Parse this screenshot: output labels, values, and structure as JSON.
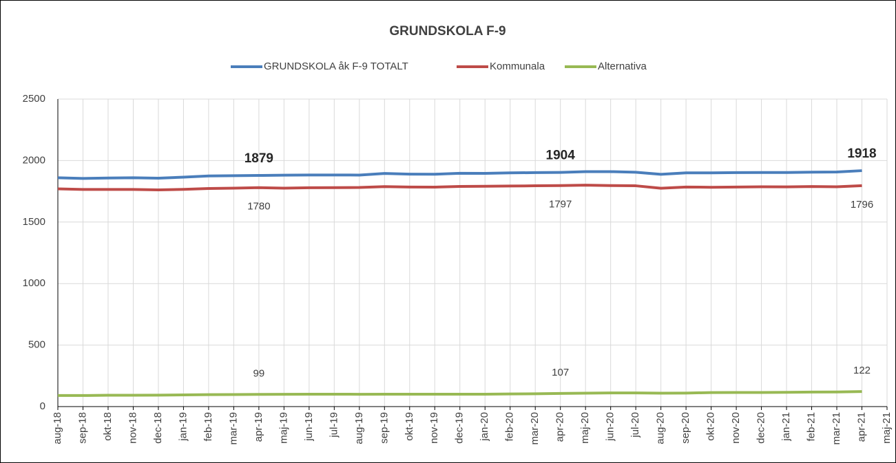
{
  "chart_data": {
    "type": "line",
    "title": "GRUNDSKOLA F-9",
    "categories": [
      "aug-18",
      "sep-18",
      "okt-18",
      "nov-18",
      "dec-18",
      "jan-19",
      "feb-19",
      "mar-19",
      "apr-19",
      "maj-19",
      "jun-19",
      "jul-19",
      "aug-19",
      "sep-19",
      "okt-19",
      "nov-19",
      "dec-19",
      "jan-20",
      "feb-20",
      "mar-20",
      "apr-20",
      "maj-20",
      "jun-20",
      "jul-20",
      "aug-20",
      "sep-20",
      "okt-20",
      "nov-20",
      "dec-20",
      "jan-21",
      "feb-21",
      "mar-21",
      "apr-21",
      "maj-21"
    ],
    "series": [
      {
        "name": "GRUNDSKOLA åk F-9 TOTALT",
        "color": "#4a7ebb",
        "values": [
          1860,
          1855,
          1858,
          1860,
          1857,
          1865,
          1875,
          1877,
          1879,
          1881,
          1883,
          1883,
          1882,
          1895,
          1890,
          1889,
          1897,
          1896,
          1900,
          1902,
          1904,
          1910,
          1910,
          1905,
          1888,
          1900,
          1900,
          1902,
          1903,
          1903,
          1906,
          1907,
          1918,
          null
        ]
      },
      {
        "name": "Kommunala",
        "color": "#be4b48",
        "values": [
          1770,
          1765,
          1765,
          1765,
          1762,
          1766,
          1773,
          1776,
          1780,
          1776,
          1779,
          1780,
          1781,
          1788,
          1785,
          1784,
          1790,
          1791,
          1793,
          1795,
          1797,
          1800,
          1797,
          1795,
          1775,
          1785,
          1783,
          1785,
          1787,
          1786,
          1789,
          1787,
          1796,
          null
        ]
      },
      {
        "name": "Alternativa",
        "color": "#98b954",
        "values": [
          90,
          90,
          92,
          92,
          93,
          95,
          97,
          98,
          99,
          100,
          101,
          101,
          100,
          101,
          101,
          101,
          101,
          101,
          103,
          104,
          107,
          109,
          111,
          111,
          109,
          110,
          114,
          115,
          115,
          116,
          118,
          119,
          122,
          null
        ]
      }
    ],
    "label_indices": [
      8,
      20,
      32
    ],
    "ylim": [
      0,
      2500
    ],
    "yticks": [
      0,
      500,
      1000,
      1500,
      2000,
      2500
    ],
    "grid": true,
    "legend": "top"
  }
}
